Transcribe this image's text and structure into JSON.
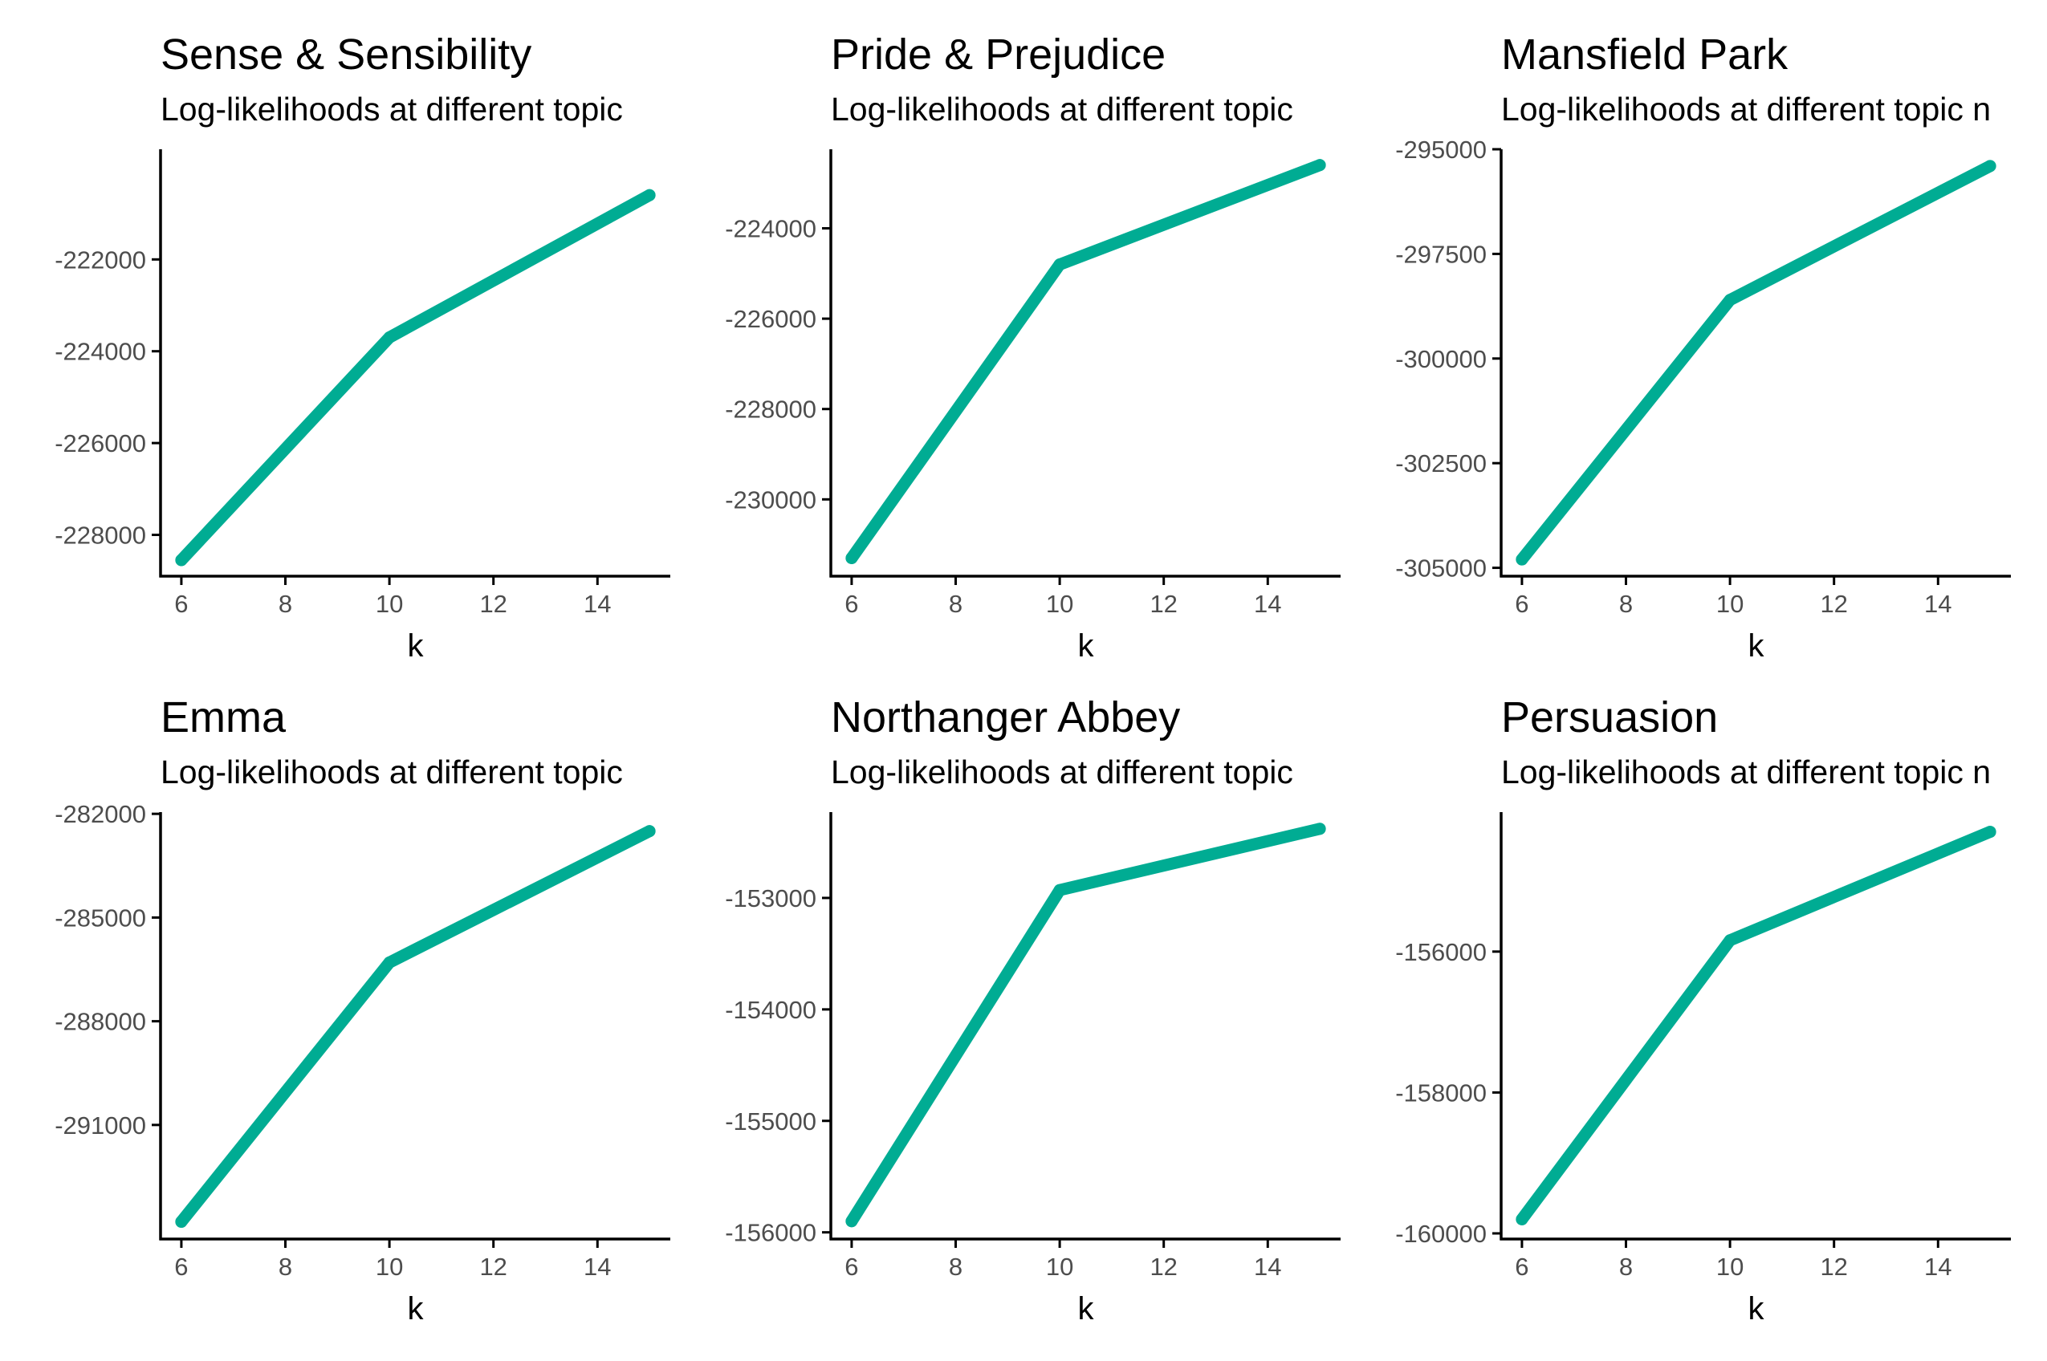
{
  "figure": {
    "background": "#ffffff",
    "line_color": "#00ac93",
    "axis_color": "#000000",
    "tick_label_color": "#4d4d4d"
  },
  "chart_data": [
    {
      "type": "line",
      "title": "Sense & Sensibility",
      "subtitle": "Log-likelihoods at different topic",
      "xlabel": "k",
      "ylabel": "",
      "x": [
        6,
        10,
        15
      ],
      "series": [
        {
          "values": [
            -228550,
            -223700,
            -220600
          ]
        }
      ],
      "xlim": [
        5.6,
        15.4
      ],
      "ylim": [
        -228900,
        -219600
      ],
      "xticks": [
        6,
        8,
        10,
        12,
        14
      ],
      "xtick_labels": [
        "6",
        "8",
        "10",
        "12",
        "14"
      ],
      "yticks": [
        -228000,
        -226000,
        -224000,
        -222000
      ],
      "ytick_labels": [
        "-228000",
        "-226000",
        "-224000",
        "-222000"
      ],
      "grid": false,
      "legend": "none"
    },
    {
      "type": "line",
      "title": "Pride & Prejudice",
      "subtitle": "Log-likelihoods at different topic",
      "xlabel": "k",
      "ylabel": "",
      "x": [
        6,
        10,
        15
      ],
      "series": [
        {
          "values": [
            -231300,
            -224800,
            -222600
          ]
        }
      ],
      "xlim": [
        5.6,
        15.4
      ],
      "ylim": [
        -231700,
        -222250
      ],
      "xticks": [
        6,
        8,
        10,
        12,
        14
      ],
      "xtick_labels": [
        "6",
        "8",
        "10",
        "12",
        "14"
      ],
      "yticks": [
        -230000,
        -228000,
        -226000,
        -224000
      ],
      "ytick_labels": [
        "-230000",
        "-228000",
        "-226000",
        "-224000"
      ],
      "grid": false,
      "legend": "none"
    },
    {
      "type": "line",
      "title": "Mansfield Park",
      "subtitle": "Log-likelihoods at different topic n",
      "xlabel": "k",
      "ylabel": "",
      "x": [
        6,
        10,
        15
      ],
      "series": [
        {
          "values": [
            -304800,
            -298600,
            -295400
          ]
        }
      ],
      "xlim": [
        5.6,
        15.4
      ],
      "ylim": [
        -305200,
        -295000
      ],
      "xticks": [
        6,
        8,
        10,
        12,
        14
      ],
      "xtick_labels": [
        "6",
        "8",
        "10",
        "12",
        "14"
      ],
      "yticks": [
        -305000,
        -302500,
        -300000,
        -297500,
        -295000
      ],
      "ytick_labels": [
        "-305000",
        "-302500",
        "-300000",
        "-297500",
        "-295000"
      ],
      "grid": false,
      "legend": "none"
    },
    {
      "type": "line",
      "title": "Emma",
      "subtitle": "Log-likelihoods at different topic",
      "xlabel": "k",
      "ylabel": "",
      "x": [
        6,
        10,
        15
      ],
      "series": [
        {
          "values": [
            -293800,
            -286300,
            -282500
          ]
        }
      ],
      "xlim": [
        5.6,
        15.4
      ],
      "ylim": [
        -294300,
        -281950
      ],
      "xticks": [
        6,
        8,
        10,
        12,
        14
      ],
      "xtick_labels": [
        "6",
        "8",
        "10",
        "12",
        "14"
      ],
      "yticks": [
        -291000,
        -288000,
        -285000,
        -282000
      ],
      "ytick_labels": [
        "-291000",
        "-288000",
        "-285000",
        "-282000"
      ],
      "grid": false,
      "legend": "none"
    },
    {
      "type": "line",
      "title": "Northanger Abbey",
      "subtitle": "Log-likelihoods at different topic",
      "xlabel": "k",
      "ylabel": "",
      "x": [
        6,
        10,
        15
      ],
      "series": [
        {
          "values": [
            -155900,
            -152930,
            -152380
          ]
        }
      ],
      "xlim": [
        5.6,
        15.4
      ],
      "ylim": [
        -156060,
        -152230
      ],
      "xticks": [
        6,
        8,
        10,
        12,
        14
      ],
      "xtick_labels": [
        "6",
        "8",
        "10",
        "12",
        "14"
      ],
      "yticks": [
        -156000,
        -155000,
        -154000,
        -153000
      ],
      "ytick_labels": [
        "-156000",
        "-155000",
        "-154000",
        "-153000"
      ],
      "grid": false,
      "legend": "none"
    },
    {
      "type": "line",
      "title": "Persuasion",
      "subtitle": "Log-likelihoods at different topic n",
      "xlabel": "k",
      "ylabel": "",
      "x": [
        6,
        10,
        15
      ],
      "series": [
        {
          "values": [
            -159800,
            -155840,
            -154300
          ]
        }
      ],
      "xlim": [
        5.6,
        15.4
      ],
      "ylim": [
        -160080,
        -154020
      ],
      "xticks": [
        6,
        8,
        10,
        12,
        14
      ],
      "xtick_labels": [
        "6",
        "8",
        "10",
        "12",
        "14"
      ],
      "yticks": [
        -160000,
        -158000,
        -156000
      ],
      "ytick_labels": [
        "-160000",
        "-158000",
        "-156000"
      ],
      "grid": false,
      "legend": "none"
    }
  ]
}
